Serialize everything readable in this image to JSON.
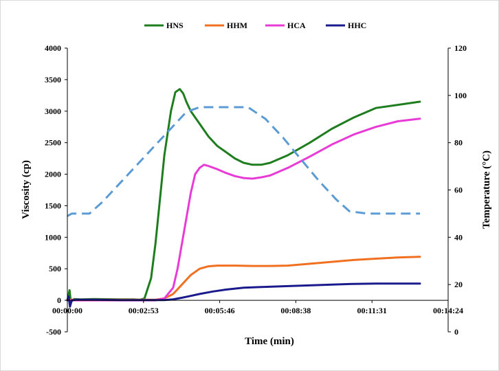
{
  "chart_data": {
    "type": "line",
    "xlabel": "Time (min)",
    "ylabel": "Viscosity (cp)",
    "y2label": "Temperature (°C)",
    "x_ticks": [
      "00:00:00",
      "00:02:53",
      "00:05:46",
      "00:08:38",
      "00:11:31",
      "00:14:24"
    ],
    "x_range_sec": [
      0,
      864
    ],
    "ylim": [
      -500,
      4000
    ],
    "y_ticks": [
      -500,
      0,
      500,
      1000,
      1500,
      2000,
      2500,
      3000,
      3500,
      4000
    ],
    "y2lim": [
      0,
      120
    ],
    "y2_ticks": [
      0,
      20,
      40,
      60,
      80,
      100,
      120
    ],
    "grid": false,
    "legend_position": "top-center",
    "series": [
      {
        "name": "HNS",
        "color": "#1e7d1e",
        "axis": "left",
        "x_sec": [
          0,
          5,
          8,
          12,
          15,
          30,
          60,
          120,
          150,
          165,
          175,
          190,
          200,
          210,
          220,
          235,
          245,
          255,
          263,
          270,
          280,
          300,
          320,
          340,
          360,
          380,
          400,
          420,
          440,
          460,
          500,
          550,
          600,
          650,
          700,
          750,
          800
        ],
        "values": [
          0,
          160,
          -30,
          0,
          20,
          15,
          20,
          15,
          15,
          10,
          30,
          350,
          900,
          1600,
          2300,
          3000,
          3300,
          3350,
          3280,
          3150,
          3000,
          2800,
          2600,
          2450,
          2350,
          2250,
          2180,
          2150,
          2150,
          2180,
          2300,
          2500,
          2720,
          2900,
          3050,
          3100,
          3150
        ]
      },
      {
        "name": "HHM",
        "color": "#f07020",
        "axis": "left",
        "x_sec": [
          0,
          20,
          60,
          120,
          150,
          180,
          200,
          220,
          240,
          260,
          280,
          300,
          320,
          340,
          380,
          420,
          460,
          500,
          550,
          600,
          650,
          700,
          750,
          800
        ],
        "values": [
          10,
          10,
          10,
          10,
          10,
          10,
          10,
          30,
          100,
          250,
          400,
          500,
          540,
          550,
          550,
          545,
          545,
          550,
          580,
          610,
          640,
          660,
          680,
          690
        ]
      },
      {
        "name": "HCA",
        "color": "#e83ad6",
        "axis": "left",
        "x_sec": [
          0,
          60,
          120,
          150,
          180,
          200,
          220,
          240,
          250,
          260,
          270,
          280,
          290,
          300,
          310,
          320,
          340,
          360,
          380,
          400,
          420,
          440,
          460,
          500,
          550,
          600,
          650,
          700,
          750,
          800
        ],
        "values": [
          0,
          0,
          0,
          0,
          0,
          0,
          30,
          200,
          500,
          900,
          1300,
          1700,
          2000,
          2100,
          2150,
          2130,
          2080,
          2020,
          1970,
          1940,
          1930,
          1950,
          1980,
          2100,
          2280,
          2470,
          2630,
          2750,
          2840,
          2880
        ]
      },
      {
        "name": "HHC",
        "color": "#1a1a8c",
        "axis": "left",
        "x_sec": [
          0,
          3,
          6,
          10,
          20,
          60,
          120,
          180,
          220,
          240,
          260,
          280,
          300,
          330,
          360,
          400,
          440,
          480,
          520,
          560,
          600,
          650,
          700,
          750,
          800
        ],
        "values": [
          0,
          60,
          -100,
          0,
          10,
          10,
          5,
          5,
          5,
          15,
          40,
          70,
          100,
          140,
          170,
          200,
          210,
          220,
          230,
          240,
          250,
          260,
          265,
          265,
          265
        ]
      },
      {
        "name": "Temperature",
        "color": "#5b9bd5",
        "axis": "right",
        "dashed": true,
        "x_sec": [
          0,
          10,
          20,
          50,
          80,
          120,
          160,
          200,
          240,
          270,
          300,
          340,
          380,
          410,
          450,
          490,
          530,
          570,
          610,
          640,
          680,
          720,
          760,
          800
        ],
        "values_c": [
          49,
          50,
          50,
          50,
          55,
          63,
          71,
          79,
          87,
          93,
          95,
          95,
          95,
          95,
          90,
          82,
          73,
          64,
          56,
          51,
          50,
          50,
          50,
          50
        ]
      }
    ]
  }
}
